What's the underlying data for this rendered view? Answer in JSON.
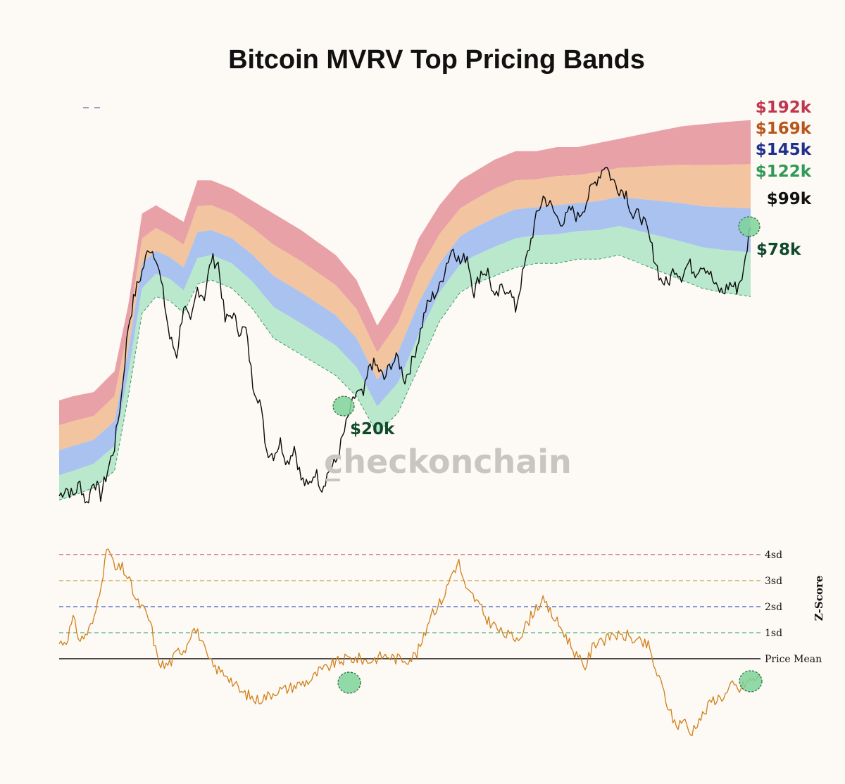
{
  "chart_data": [
    {
      "type": "area",
      "title": "Bitcoin MVRV Top Pricing Bands",
      "x_domain": [
        0,
        100
      ],
      "legend_items": 1,
      "band_levels": [
        {
          "name": "4sd",
          "label": "$192k",
          "color": "#c0364f",
          "fill": "#e9a1a8"
        },
        {
          "name": "3sd",
          "label": "$169k",
          "color": "#b8551a",
          "fill": "#f2c49f"
        },
        {
          "name": "2sd",
          "label": "$145k",
          "color": "#1f2f8c",
          "fill": "#a9c2f0"
        },
        {
          "name": "1sd",
          "label": "$122k",
          "color": "#2e9a55",
          "fill": "#b9e8cd"
        },
        {
          "name": "mean",
          "label": "$99k",
          "color": "#111111"
        }
      ],
      "band_boundaries_normalized": {
        "x": [
          0,
          2,
          5,
          8,
          10,
          12,
          14,
          16,
          18,
          20,
          22,
          25,
          28,
          31,
          35,
          40,
          43,
          46,
          49,
          52,
          55,
          58,
          60,
          63,
          66,
          69,
          72,
          75,
          78,
          81,
          84,
          87,
          90,
          93,
          96,
          100
        ],
        "top": [
          0.29,
          0.3,
          0.31,
          0.36,
          0.52,
          0.74,
          0.76,
          0.74,
          0.72,
          0.82,
          0.82,
          0.8,
          0.77,
          0.74,
          0.7,
          0.64,
          0.58,
          0.47,
          0.55,
          0.68,
          0.76,
          0.82,
          0.84,
          0.87,
          0.89,
          0.89,
          0.9,
          0.9,
          0.91,
          0.92,
          0.93,
          0.94,
          0.95,
          0.955,
          0.96,
          0.965
        ],
        "mean": [
          0.05,
          0.06,
          0.08,
          0.12,
          0.3,
          0.5,
          0.54,
          0.53,
          0.5,
          0.57,
          0.58,
          0.56,
          0.51,
          0.44,
          0.4,
          0.35,
          0.3,
          0.21,
          0.26,
          0.37,
          0.48,
          0.55,
          0.57,
          0.59,
          0.61,
          0.62,
          0.62,
          0.63,
          0.63,
          0.64,
          0.62,
          0.6,
          0.58,
          0.56,
          0.55,
          0.54
        ]
      },
      "price_normalized": {
        "x": [
          0,
          1,
          2,
          3,
          4,
          5,
          6,
          7,
          8,
          9,
          10,
          11,
          12,
          13,
          14,
          15,
          16,
          17,
          18,
          19,
          20,
          21,
          22,
          23,
          24,
          25,
          26,
          27,
          28,
          29,
          30,
          31,
          32,
          33,
          34,
          35,
          36,
          37,
          38,
          39,
          40,
          41,
          42,
          43,
          44,
          45,
          46,
          47,
          48,
          49,
          50,
          51,
          52,
          53,
          54,
          55,
          56,
          57,
          58,
          59,
          60,
          61,
          62,
          63,
          64,
          65,
          66,
          67,
          68,
          69,
          70,
          71,
          72,
          73,
          74,
          75,
          76,
          77,
          78,
          79,
          80,
          81,
          82,
          83,
          84,
          85,
          86,
          87,
          88,
          89,
          90,
          91,
          92,
          93,
          94,
          95,
          96,
          97,
          98,
          99,
          100
        ],
        "y": [
          0.06,
          0.08,
          0.06,
          0.09,
          0.04,
          0.1,
          0.06,
          0.12,
          0.18,
          0.3,
          0.47,
          0.55,
          0.6,
          0.66,
          0.64,
          0.55,
          0.44,
          0.4,
          0.52,
          0.47,
          0.56,
          0.54,
          0.63,
          0.62,
          0.48,
          0.5,
          0.46,
          0.46,
          0.33,
          0.29,
          0.17,
          0.16,
          0.19,
          0.14,
          0.18,
          0.1,
          0.08,
          0.12,
          0.08,
          0.12,
          0.14,
          0.2,
          0.26,
          0.31,
          0.3,
          0.38,
          0.37,
          0.34,
          0.38,
          0.39,
          0.34,
          0.38,
          0.44,
          0.51,
          0.54,
          0.56,
          0.62,
          0.66,
          0.62,
          0.64,
          0.55,
          0.6,
          0.6,
          0.53,
          0.56,
          0.56,
          0.51,
          0.59,
          0.66,
          0.73,
          0.78,
          0.76,
          0.73,
          0.72,
          0.75,
          0.73,
          0.76,
          0.8,
          0.83,
          0.86,
          0.82,
          0.8,
          0.79,
          0.73,
          0.74,
          0.7,
          0.64,
          0.58,
          0.57,
          0.61,
          0.59,
          0.62,
          0.6,
          0.62,
          0.6,
          0.56,
          0.55,
          0.57,
          0.56,
          0.6,
          0.72
        ]
      },
      "annotations": [
        {
          "label": "$20k",
          "x": 40
        },
        {
          "label": "$78k",
          "x": 99
        }
      ],
      "watermark": "checkonchain"
    },
    {
      "type": "line",
      "xlabel": "",
      "ylabel": "Z-Score",
      "reference_levels": [
        {
          "label": "4sd",
          "value": 4,
          "color": "#c06070"
        },
        {
          "label": "3sd",
          "value": 3,
          "color": "#c8a040"
        },
        {
          "label": "2sd",
          "value": 2,
          "color": "#4060c0"
        },
        {
          "label": "1sd",
          "value": 1,
          "color": "#50b080"
        },
        {
          "label": "Price Mean",
          "value": 0,
          "color": "#111111"
        }
      ],
      "ylim": [
        -3.3,
        4.4
      ],
      "series": [
        {
          "values_x": [
            0,
            1,
            2,
            3,
            4,
            5,
            6,
            7,
            8,
            9,
            10,
            11,
            12,
            13,
            14,
            15,
            16,
            17,
            18,
            19,
            20,
            21,
            22,
            23,
            24,
            25,
            26,
            27,
            28,
            29,
            30,
            31,
            32,
            33,
            34,
            35,
            36,
            37,
            38,
            39,
            40,
            41,
            42,
            43,
            44,
            45,
            46,
            47,
            48,
            49,
            50,
            51,
            52,
            53,
            54,
            55,
            56,
            57,
            58,
            59,
            60,
            61,
            62,
            63,
            64,
            65,
            66,
            67,
            68,
            69,
            70,
            71,
            72,
            73,
            74,
            75,
            76,
            77,
            78,
            79,
            80,
            81,
            82,
            83,
            84,
            85,
            86,
            87,
            88,
            89,
            90,
            91,
            92,
            93,
            94,
            95,
            96,
            97,
            98,
            99,
            100
          ],
          "values": [
            0.6,
            0.7,
            1.5,
            0.7,
            1.0,
            1.5,
            3.0,
            4.3,
            3.4,
            3.5,
            3.0,
            2.2,
            1.9,
            1.4,
            0.0,
            -0.3,
            -0.1,
            0.3,
            0.4,
            1.2,
            0.9,
            0.1,
            -0.3,
            -0.5,
            -0.6,
            -1.0,
            -1.3,
            -1.4,
            -1.6,
            -1.5,
            -1.4,
            -1.2,
            -1.2,
            -1.1,
            -1.0,
            -0.9,
            -0.8,
            -0.5,
            -0.4,
            -0.2,
            -0.1,
            0.0,
            0.0,
            0.0,
            -0.1,
            0.0,
            0.1,
            0.1,
            0.0,
            0.0,
            0.0,
            0.2,
            0.8,
            1.8,
            2.0,
            2.5,
            3.3,
            3.7,
            2.6,
            2.4,
            2.0,
            1.5,
            1.3,
            1.0,
            0.9,
            0.8,
            1.0,
            1.5,
            2.0,
            2.2,
            1.8,
            1.4,
            1.0,
            0.5,
            0.0,
            -0.3,
            0.4,
            0.8,
            0.7,
            1.0,
            0.8,
            0.9,
            0.7,
            0.6,
            0.5,
            -0.4,
            -1.1,
            -2.0,
            -2.6,
            -2.3,
            -2.9,
            -2.4,
            -2.1,
            -1.6,
            -1.5,
            -1.4,
            -1.0,
            -1.2,
            -0.9,
            -0.8,
            -0.7
          ]
        }
      ]
    }
  ],
  "ui": {
    "title": "Bitcoin MVRV Top Pricing Bands",
    "z_axis_label": "Z-Score",
    "watermark": "checkonchain"
  }
}
